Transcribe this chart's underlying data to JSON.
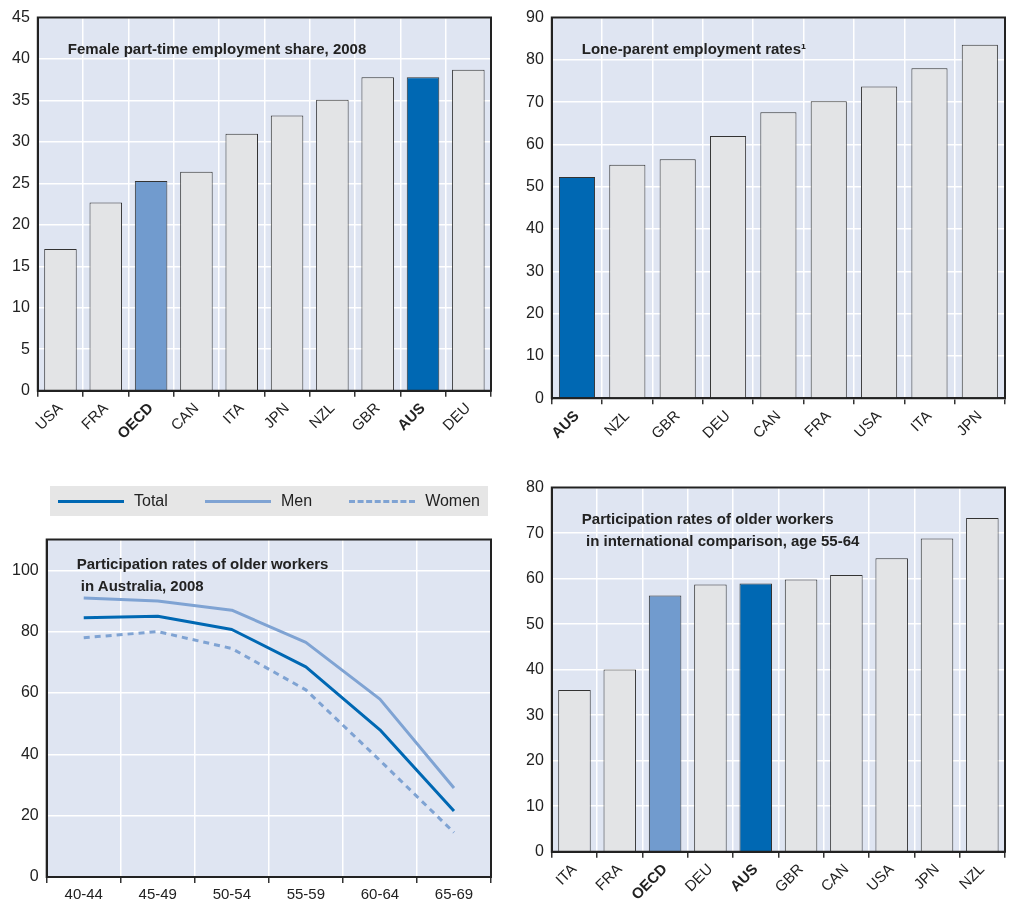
{
  "chart_data": [
    {
      "type": "bar",
      "title": "Female part-time employment share, 2008",
      "categories": [
        "USA",
        "FRA",
        "OECD",
        "CAN",
        "ITA",
        "JPN",
        "NZL",
        "GBR",
        "AUS",
        "DEU"
      ],
      "values": [
        17.1,
        22.7,
        25.3,
        26.4,
        31,
        33.2,
        35.1,
        37.8,
        37.8,
        38.7
      ],
      "colors": [
        "#e3e4e6",
        "#e3e4e6",
        "#719bce",
        "#e3e4e6",
        "#e3e4e6",
        "#e3e4e6",
        "#e3e4e6",
        "#e3e4e6",
        "#0068b3",
        "#e3e4e6"
      ],
      "ylim": [
        0,
        45
      ],
      "yticks": [
        0,
        5,
        10,
        15,
        20,
        25,
        30,
        35,
        40,
        45
      ],
      "grid": true
    },
    {
      "type": "bar",
      "title": "Lone-parent employment rates¹",
      "categories": [
        "AUS",
        "NZL",
        "GBR",
        "DEU",
        "CAN",
        "FRA",
        "USA",
        "ITA",
        "JPN"
      ],
      "values": [
        52.3,
        55.2,
        56.5,
        62,
        67.6,
        70.2,
        73.7,
        78,
        83.6
      ],
      "colors": [
        "#0068b3",
        "#e3e4e6",
        "#e3e4e6",
        "#e3e4e6",
        "#e3e4e6",
        "#e3e4e6",
        "#e3e4e6",
        "#e3e4e6",
        "#e3e4e6"
      ],
      "ylim": [
        0,
        90
      ],
      "yticks": [
        0,
        10,
        20,
        30,
        40,
        50,
        60,
        70,
        80,
        90
      ],
      "grid": true
    },
    {
      "type": "line",
      "title": "Participation rates of older workers\n in Australia, 2008",
      "categories": [
        "40-44",
        "45-49",
        "50-54",
        "55-59",
        "60-64",
        "65-69"
      ],
      "series": [
        {
          "name": "Total",
          "color": "#0068b3",
          "values": [
            84.5,
            85,
            80.7,
            68.5,
            48,
            21.5
          ]
        },
        {
          "name": "Men",
          "color": "#7fa3d3",
          "values": [
            91,
            90,
            87,
            76.5,
            58,
            29
          ]
        },
        {
          "name": "Women",
          "color": "#7fa3d3",
          "line_style": "dashed",
          "values": [
            78,
            80,
            74.5,
            61,
            38,
            14.5
          ]
        }
      ],
      "ylim": [
        0,
        110
      ],
      "yticks": [
        0,
        20,
        40,
        60,
        80,
        100
      ],
      "grid": true,
      "legend": "top"
    },
    {
      "type": "bar",
      "title": "Participation rates of older workers\n in international comparison, age 55-64",
      "categories": [
        "ITA",
        "FRA",
        "OECD",
        "DEU",
        "AUS",
        "GBR",
        "CAN",
        "USA",
        "JPN",
        "NZL"
      ],
      "values": [
        35.5,
        40,
        56.3,
        58.7,
        58.9,
        59.8,
        60.8,
        64.5,
        68.8,
        73.3
      ],
      "colors": [
        "#e3e4e6",
        "#e3e4e6",
        "#719bce",
        "#e3e4e6",
        "#0068b3",
        "#e3e4e6",
        "#e3e4e6",
        "#e3e4e6",
        "#e3e4e6",
        "#e3e4e6"
      ],
      "ylim": [
        0,
        80
      ],
      "yticks": [
        0,
        10,
        20,
        30,
        40,
        50,
        60,
        70,
        80
      ],
      "grid": true
    }
  ]
}
